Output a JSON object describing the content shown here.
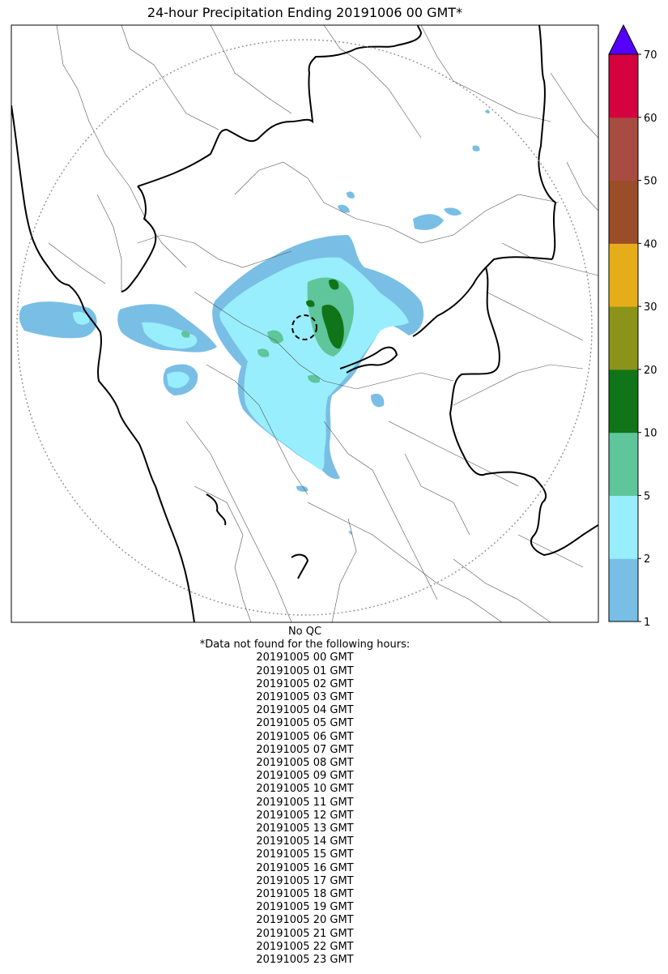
{
  "title": "24-hour Precipitation Ending 20191006 00 GMT*",
  "colorbar": {
    "levels": [
      1,
      2,
      5,
      10,
      20,
      30,
      40,
      50,
      60,
      70
    ],
    "tick_labels": [
      "1",
      "2",
      "5",
      "10",
      "20",
      "30",
      "40",
      "50",
      "60",
      "70"
    ],
    "colors": [
      "#79bee5",
      "#98eefc",
      "#5fc59b",
      "#107419",
      "#8b9319",
      "#e5ad1a",
      "#994d28",
      "#a84b40",
      "#d4033f"
    ],
    "extend_max_color": "#5500ff"
  },
  "map": {
    "radar_range_ring": "dotted circle",
    "radar_site_marker": "dashed circle",
    "boundaries": [
      "state borders (thick)",
      "district borders (thin)",
      "coastline"
    ]
  },
  "footnote": {
    "qc": "No QC",
    "missing_header": "*Data not found for the following hours:",
    "missing_hours": [
      "20191005 00 GMT",
      "20191005 01 GMT",
      "20191005 02 GMT",
      "20191005 03 GMT",
      "20191005 04 GMT",
      "20191005 05 GMT",
      "20191005 06 GMT",
      "20191005 07 GMT",
      "20191005 08 GMT",
      "20191005 09 GMT",
      "20191005 10 GMT",
      "20191005 11 GMT",
      "20191005 12 GMT",
      "20191005 13 GMT",
      "20191005 14 GMT",
      "20191005 15 GMT",
      "20191005 16 GMT",
      "20191005 17 GMT",
      "20191005 18 GMT",
      "20191005 19 GMT",
      "20191005 20 GMT",
      "20191005 21 GMT",
      "20191005 22 GMT",
      "20191005 23 GMT"
    ]
  }
}
